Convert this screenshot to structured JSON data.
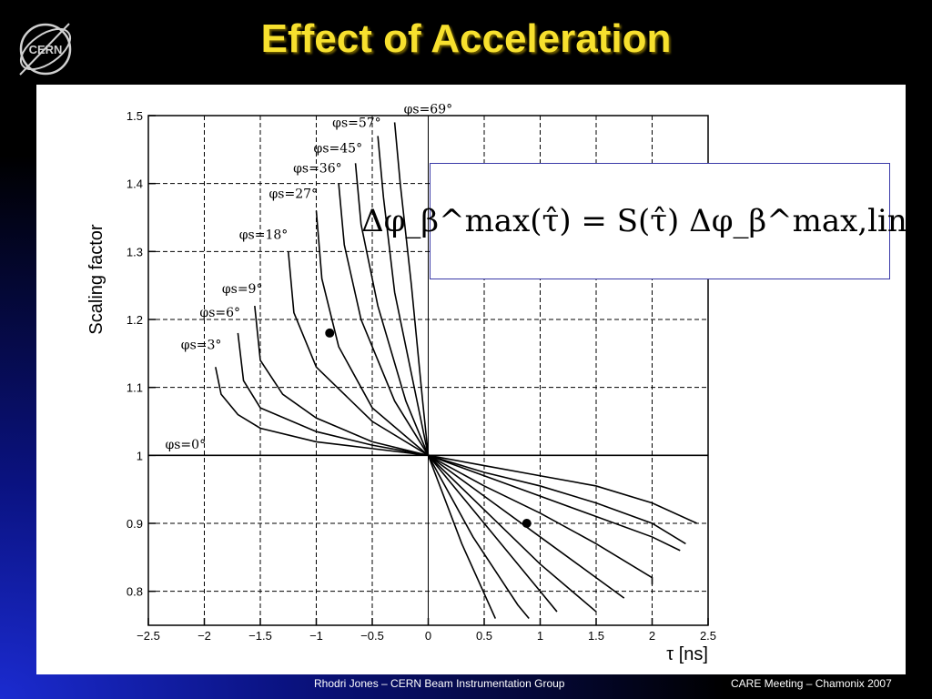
{
  "slide": {
    "title": "Effect of Acceleration",
    "logo_text": "CERN",
    "footer_left": "Rhodri Jones – CERN Beam Instrumentation Group",
    "footer_right": "CARE Meeting – Chamonix 2007",
    "formula": "Δφ_β^max(τ̂) = S(τ̂) Δφ_β^max,lin.(τ̂)",
    "title_color": "#f7e02e"
  },
  "chart_data": {
    "type": "line",
    "xlabel": "τ [ns]",
    "ylabel": "Scaling factor",
    "xlim": [
      -2.5,
      2.5
    ],
    "ylim": [
      0.75,
      1.5
    ],
    "x_ticks": [
      -2.5,
      -2,
      -1.5,
      -1,
      -0.5,
      0,
      0.5,
      1,
      1.5,
      2,
      2.5
    ],
    "x_tick_labels": [
      "−2.5",
      "−2",
      "−1.5",
      "−1",
      "−0.5",
      "0",
      "0.5",
      "1",
      "1.5",
      "2",
      "2.5"
    ],
    "y_ticks": [
      0.8,
      0.9,
      1,
      1.1,
      1.2,
      1.3,
      1.4,
      1.5
    ],
    "y_tick_labels": [
      "0.8",
      "0.9",
      "1",
      "1.1",
      "1.2",
      "1.3",
      "1.4",
      "1.5"
    ],
    "grid": true,
    "series": [
      {
        "name": "φs=0°",
        "points": [
          [
            -2.5,
            1.0
          ],
          [
            2.5,
            1.0
          ]
        ]
      },
      {
        "name": "φs=3°",
        "points": [
          [
            -1.9,
            1.13
          ],
          [
            -1.85,
            1.09
          ],
          [
            -1.7,
            1.06
          ],
          [
            -1.5,
            1.04
          ],
          [
            -1.0,
            1.02
          ],
          [
            -0.5,
            1.01
          ],
          [
            0,
            1.0
          ],
          [
            0.5,
            0.985
          ],
          [
            1.0,
            0.97
          ],
          [
            1.5,
            0.955
          ],
          [
            2.0,
            0.93
          ],
          [
            2.4,
            0.9
          ]
        ]
      },
      {
        "name": "φs=6°",
        "points": [
          [
            -1.7,
            1.18
          ],
          [
            -1.65,
            1.11
          ],
          [
            -1.5,
            1.07
          ],
          [
            -1.0,
            1.035
          ],
          [
            -0.5,
            1.015
          ],
          [
            0,
            1.0
          ],
          [
            0.5,
            0.975
          ],
          [
            1.0,
            0.955
          ],
          [
            1.5,
            0.93
          ],
          [
            2.0,
            0.9
          ],
          [
            2.3,
            0.87
          ]
        ]
      },
      {
        "name": "φs=9°",
        "points": [
          [
            -1.55,
            1.22
          ],
          [
            -1.5,
            1.14
          ],
          [
            -1.3,
            1.09
          ],
          [
            -1.0,
            1.055
          ],
          [
            -0.5,
            1.02
          ],
          [
            0,
            1.0
          ],
          [
            0.5,
            0.97
          ],
          [
            1.0,
            0.94
          ],
          [
            1.5,
            0.91
          ],
          [
            2.0,
            0.88
          ],
          [
            2.25,
            0.86
          ]
        ]
      },
      {
        "name": "φs=18°",
        "points": [
          [
            -1.25,
            1.3
          ],
          [
            -1.2,
            1.21
          ],
          [
            -1.0,
            1.13
          ],
          [
            -0.5,
            1.05
          ],
          [
            0,
            1.0
          ],
          [
            0.5,
            0.955
          ],
          [
            1.0,
            0.915
          ],
          [
            1.5,
            0.87
          ],
          [
            2.0,
            0.82
          ],
          [
            2.0,
            0.81
          ]
        ]
      },
      {
        "name": "φs=27°",
        "points": [
          [
            -1.0,
            1.36
          ],
          [
            -0.95,
            1.26
          ],
          [
            -0.8,
            1.16
          ],
          [
            -0.5,
            1.07
          ],
          [
            0,
            1.0
          ],
          [
            0.5,
            0.94
          ],
          [
            1.0,
            0.88
          ],
          [
            1.5,
            0.82
          ],
          [
            1.75,
            0.79
          ]
        ]
      },
      {
        "name": "φs=36°",
        "points": [
          [
            -0.8,
            1.4
          ],
          [
            -0.75,
            1.31
          ],
          [
            -0.6,
            1.2
          ],
          [
            -0.3,
            1.08
          ],
          [
            0,
            1.0
          ],
          [
            0.5,
            0.92
          ],
          [
            1.0,
            0.84
          ],
          [
            1.5,
            0.77
          ]
        ]
      },
      {
        "name": "φs=45°",
        "points": [
          [
            -0.65,
            1.43
          ],
          [
            -0.6,
            1.34
          ],
          [
            -0.45,
            1.22
          ],
          [
            -0.2,
            1.08
          ],
          [
            0,
            1.0
          ],
          [
            0.5,
            0.9
          ],
          [
            1.0,
            0.8
          ],
          [
            1.15,
            0.77
          ]
        ]
      },
      {
        "name": "φs=57°",
        "points": [
          [
            -0.45,
            1.47
          ],
          [
            -0.4,
            1.38
          ],
          [
            -0.3,
            1.24
          ],
          [
            -0.1,
            1.08
          ],
          [
            0,
            1.0
          ],
          [
            0.4,
            0.88
          ],
          [
            0.8,
            0.78
          ],
          [
            0.9,
            0.76
          ]
        ]
      },
      {
        "name": "φs=69°",
        "points": [
          [
            -0.3,
            1.49
          ],
          [
            -0.25,
            1.4
          ],
          [
            -0.15,
            1.25
          ],
          [
            -0.05,
            1.08
          ],
          [
            0,
            1.0
          ],
          [
            0.3,
            0.87
          ],
          [
            0.6,
            0.76
          ]
        ]
      }
    ],
    "markers": [
      [
        -0.88,
        1.18
      ],
      [
        0.88,
        0.9
      ]
    ]
  }
}
